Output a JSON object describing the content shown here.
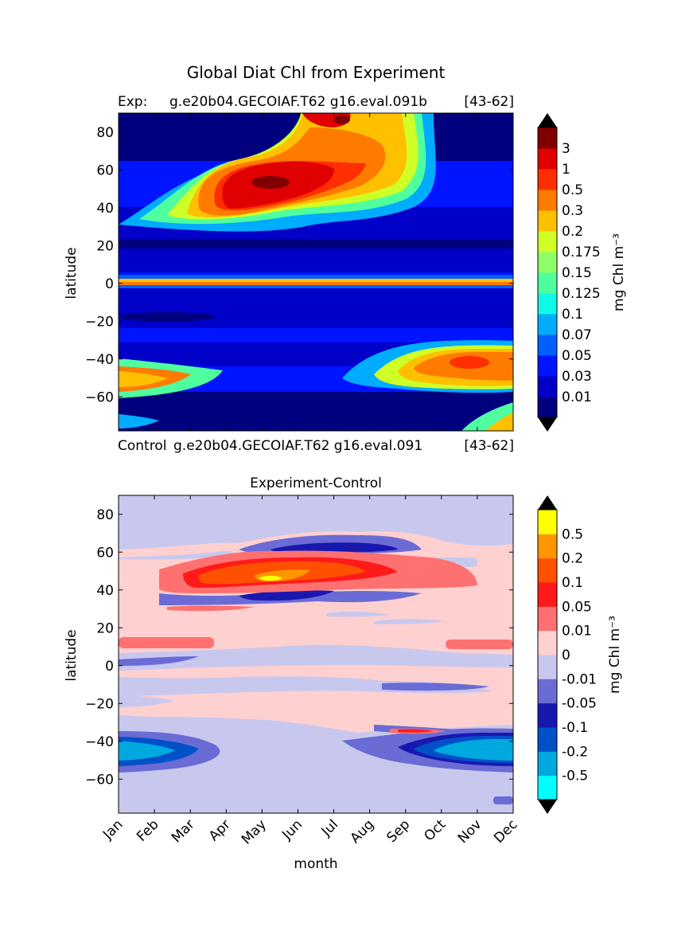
{
  "figure": {
    "title": "Global Diat Chl from Experiment"
  },
  "chart_data": [
    {
      "type": "heatmap",
      "left_label": "Exp:",
      "center_label": "g.e20b04.GECOIAF.T62 g16.eval.091b",
      "right_label": "[43-62]",
      "xlabel": "",
      "ylabel": "latitude",
      "ylim": [
        -78,
        90
      ],
      "yticks": [
        "80",
        "60",
        "40",
        "20",
        "0",
        "−20",
        "−40",
        "−60"
      ],
      "x_categories": [
        "Jan",
        "Feb",
        "Mar",
        "Apr",
        "May",
        "Jun",
        "Jul",
        "Aug",
        "Sep",
        "Oct",
        "Nov",
        "Dec"
      ],
      "colorbar": {
        "label": "mg Chl m⁻³",
        "levels": [
          "0.01",
          "0.03",
          "0.05",
          "0.07",
          "0.1",
          "0.125",
          "0.15",
          "0.175",
          "0.2",
          "0.3",
          "0.5",
          "1",
          "3"
        ],
        "colors": [
          "#00007f",
          "#0000c8",
          "#0014ff",
          "#0060ff",
          "#00acff",
          "#10f8e6",
          "#4fff9f",
          "#8fff67",
          "#d0ff28",
          "#ffc000",
          "#ff7b00",
          "#ff2f00",
          "#e00000",
          "#800000"
        ],
        "under_color": "#000000",
        "over_color": "#000000"
      }
    },
    {
      "type": "heatmap",
      "left_label": "Control",
      "center_label": "g.e20b04.GECOIAF.T62 g16.eval.091",
      "right_label": "[43-62]",
      "title": "Experiment-Control",
      "xlabel": "month",
      "ylabel": "latitude",
      "ylim": [
        -78,
        90
      ],
      "yticks": [
        "80",
        "60",
        "40",
        "20",
        "0",
        "−20",
        "−40",
        "−60"
      ],
      "x_categories": [
        "Jan",
        "Feb",
        "Mar",
        "Apr",
        "May",
        "Jun",
        "Jul",
        "Aug",
        "Sep",
        "Oct",
        "Nov",
        "Dec"
      ],
      "colorbar": {
        "label": "mg Chl m⁻³",
        "levels": [
          "0.5",
          "0.2",
          "0.1",
          "0.05",
          "0.01",
          "0",
          "-0.01",
          "-0.05",
          "-0.1",
          "-0.2",
          "-0.5"
        ],
        "colors": [
          "#00ffff",
          "#00a8e0",
          "#0050c8",
          "#1818b0",
          "#6b6bd6",
          "#c8c8ee",
          "#ffd0d0",
          "#ff7070",
          "#ff1a1a",
          "#ff5000",
          "#ff9600",
          "#ffff00"
        ],
        "under_color": "#000000",
        "over_color": "#000000"
      }
    }
  ]
}
